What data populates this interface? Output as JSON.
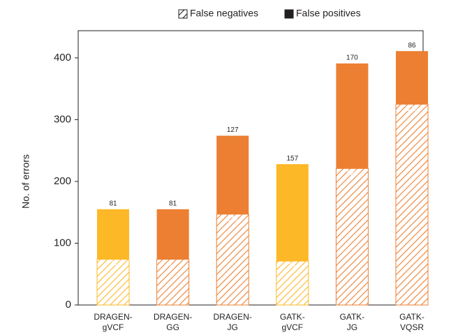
{
  "chart_data": {
    "type": "stacked_bar",
    "y_label": "No. of errors",
    "categories": [
      [
        "DRAGEN-",
        "gVCF"
      ],
      [
        "DRAGEN-",
        "GG"
      ],
      [
        "DRAGEN-",
        "JG"
      ],
      [
        "GATK-",
        "gVCF"
      ],
      [
        "GATK-",
        "JG"
      ],
      [
        "GATK-",
        "VQSR"
      ]
    ],
    "bar_colors": [
      "#fdb827",
      "#ec7f31",
      "#ec7f31",
      "#fdb827",
      "#ec7f31",
      "#ec7f31"
    ],
    "series": [
      {
        "name": "False negatives",
        "pattern": "hatch",
        "color": "#231f20",
        "values": [
          74,
          74,
          147,
          71,
          221,
          325
        ]
      },
      {
        "name": "False positives",
        "pattern": "solid",
        "color": "#231f20",
        "values": [
          81,
          81,
          127,
          157,
          170,
          86
        ]
      }
    ],
    "ylim": [
      0,
      444
    ],
    "yticks": [
      0,
      100,
      200,
      300,
      400
    ]
  }
}
